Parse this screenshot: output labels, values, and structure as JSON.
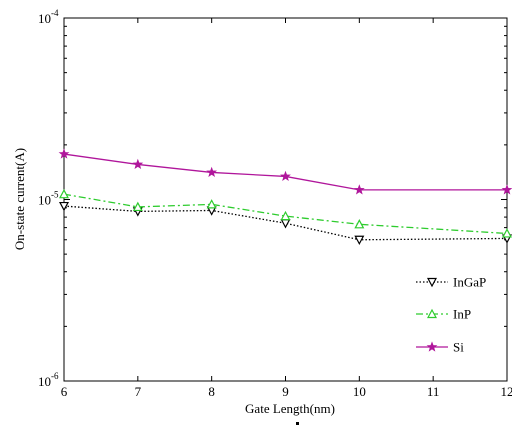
{
  "chart_data": {
    "type": "line",
    "xlabel": "Gate Length(nm)",
    "ylabel": "On-state current(A)",
    "x": [
      6,
      7,
      8,
      9,
      10,
      12
    ],
    "xlim": [
      6,
      12
    ],
    "x_ticks": [
      "6",
      "7",
      "8",
      "9",
      "10",
      "11",
      "12"
    ],
    "y_scale": "log",
    "ylim": [
      1e-06,
      0.0001
    ],
    "y_ticks": [
      {
        "base": "10",
        "exp": "-6",
        "value": 1e-06
      },
      {
        "base": "10",
        "exp": "-5",
        "value": 1e-05
      },
      {
        "base": "10",
        "exp": "-4",
        "value": 0.0001
      }
    ],
    "grid": false,
    "legend_position": "lower-right",
    "series": [
      {
        "name": "InGaP",
        "color": "#000000",
        "marker": "triangle-down",
        "dash": "dotted",
        "values": [
          9.2e-06,
          8.6e-06,
          8.7e-06,
          7.4e-06,
          6e-06,
          6.1e-06
        ]
      },
      {
        "name": "InP",
        "color": "#2ecc2e",
        "marker": "triangle-up",
        "dash": "dashdot",
        "values": [
          1.07e-05,
          9.1e-06,
          9.4e-06,
          8.1e-06,
          7.3e-06,
          6.5e-06
        ]
      },
      {
        "name": "Si",
        "color": "#b0169b",
        "marker": "star",
        "dash": "solid",
        "values": [
          1.78e-05,
          1.56e-05,
          1.41e-05,
          1.34e-05,
          1.13e-05,
          1.13e-05
        ]
      }
    ]
  }
}
